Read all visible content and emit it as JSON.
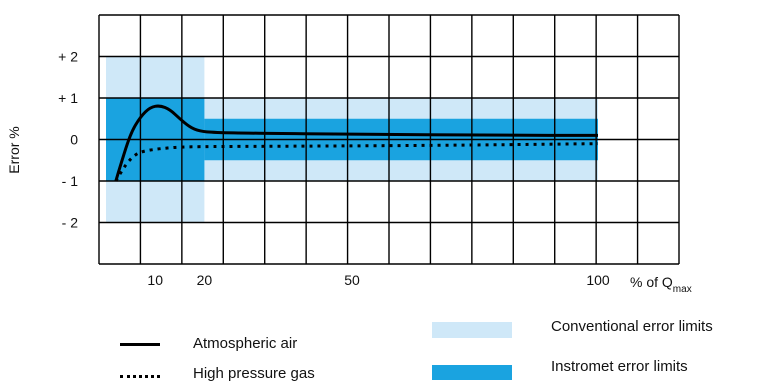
{
  "chart_data": {
    "type": "line",
    "ylabel": "Error %",
    "xunit": {
      "prefix": "% of Q",
      "subscript": "max"
    },
    "x_ticks": [
      {
        "value": 10,
        "label": "10"
      },
      {
        "value": 20,
        "label": "20"
      },
      {
        "value": 50,
        "label": "50"
      },
      {
        "value": 100,
        "label": "100"
      }
    ],
    "y_ticks": [
      {
        "value": 2,
        "label": "+ 2"
      },
      {
        "value": 1,
        "label": "+ 1"
      },
      {
        "value": 0,
        "label": "0"
      },
      {
        "value": -1,
        "label": "- 1"
      },
      {
        "value": -2,
        "label": "- 2"
      }
    ],
    "ylim": [
      -3,
      3
    ],
    "grid": true,
    "bands": [
      {
        "name": "Conventional error limits",
        "color": "#cfe8f8",
        "segments": [
          {
            "x0": 0,
            "x1": 20,
            "y0": -2,
            "y1": 2
          },
          {
            "x0": 20,
            "x1": 100,
            "y0": -1,
            "y1": 1
          }
        ]
      },
      {
        "name": "Instromet error limits",
        "color": "#1aa3e0",
        "segments": [
          {
            "x0": 0,
            "x1": 20,
            "y0": -1,
            "y1": 1
          },
          {
            "x0": 20,
            "x1": 100,
            "y0": -0.5,
            "y1": 0.5
          }
        ]
      }
    ],
    "series": [
      {
        "name": "Atmospheric air",
        "style": "solid",
        "color": "#000000",
        "points": [
          [
            2,
            -1.0
          ],
          [
            3,
            -0.6
          ],
          [
            5,
            0.15
          ],
          [
            7,
            0.55
          ],
          [
            9,
            0.78
          ],
          [
            11,
            0.82
          ],
          [
            13,
            0.72
          ],
          [
            15,
            0.5
          ],
          [
            17,
            0.3
          ],
          [
            19,
            0.2
          ],
          [
            22,
            0.17
          ],
          [
            30,
            0.15
          ],
          [
            50,
            0.13
          ],
          [
            80,
            0.1
          ],
          [
            100,
            0.1
          ]
        ]
      },
      {
        "name": "High pressure gas",
        "style": "dotted",
        "color": "#000000",
        "points": [
          [
            2,
            -1.0
          ],
          [
            4,
            -0.6
          ],
          [
            6,
            -0.35
          ],
          [
            8,
            -0.27
          ],
          [
            11,
            -0.22
          ],
          [
            15,
            -0.18
          ],
          [
            20,
            -0.17
          ],
          [
            40,
            -0.16
          ],
          [
            70,
            -0.14
          ],
          [
            100,
            -0.1
          ]
        ]
      }
    ]
  },
  "legend": {
    "atmospheric_air": "Atmospheric air",
    "high_pressure_gas": "High pressure gas",
    "conventional": "Conventional error limits",
    "instromet": "Instromet error limits"
  }
}
